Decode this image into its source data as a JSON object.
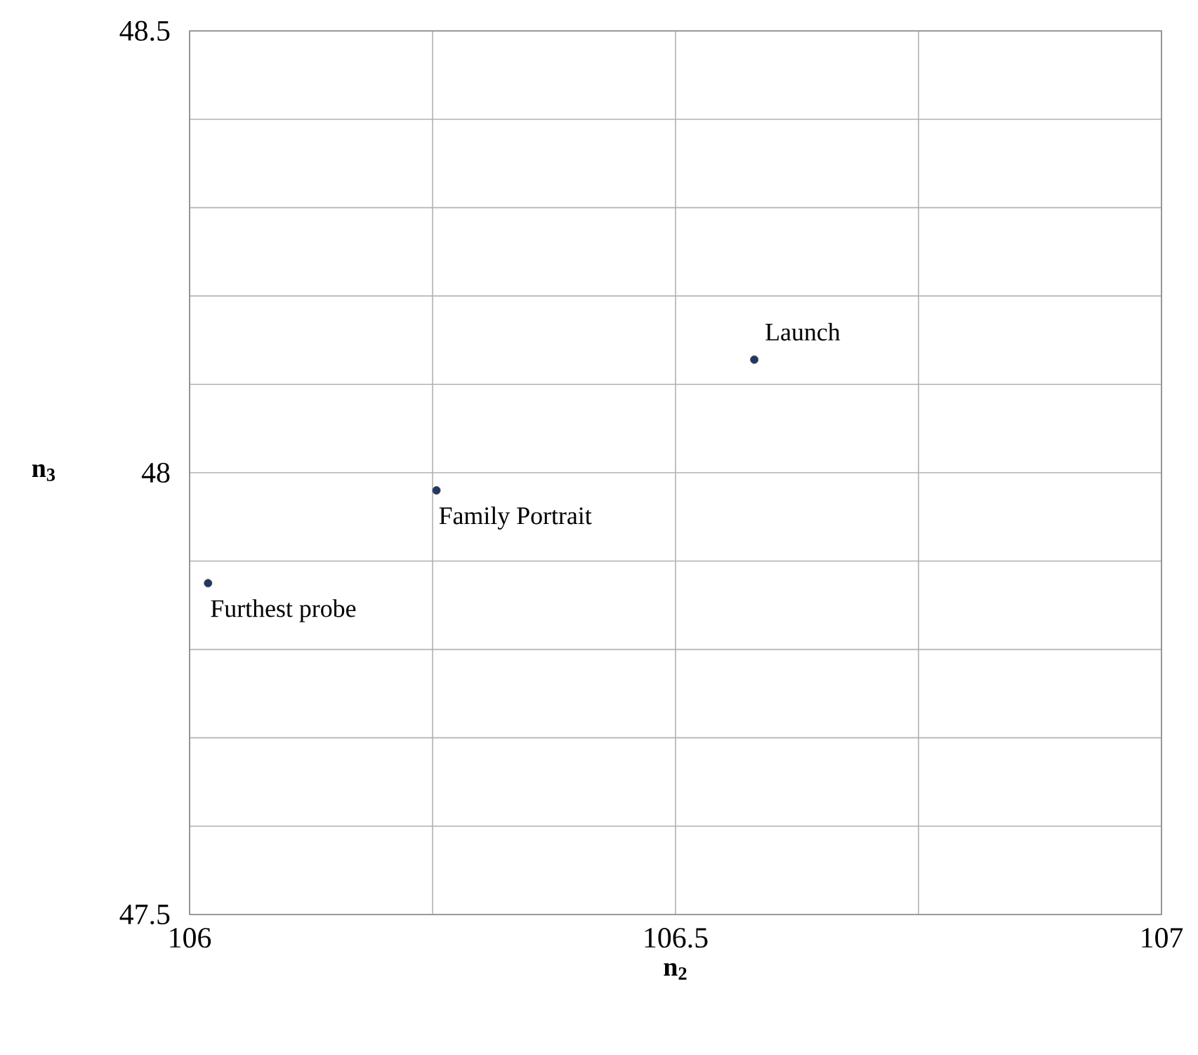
{
  "chart_data": {
    "type": "scatter",
    "xlabel": "n$_{2}$",
    "ylabel": "n$_{3}$",
    "series": [
      {
        "color": "#1f3864",
        "x": [
          106.581,
          106.254,
          106.019
        ],
        "values": [
          48.128,
          47.98,
          47.875
        ]
      }
    ],
    "xlim": [
      106,
      107
    ],
    "ylim": [
      47.5,
      48.5
    ],
    "xticks": [
      106,
      {
        "value": 106.25,
        "label": null
      },
      106.5,
      {
        "value": 106.75,
        "label": null
      },
      107
    ],
    "yticks": [
      47.5,
      {
        "value": 47.6,
        "label": null
      },
      {
        "value": 47.7,
        "label": null
      },
      {
        "value": 47.8,
        "label": null
      },
      {
        "value": 47.9,
        "label": null
      },
      48,
      {
        "value": 48.1,
        "label": null
      },
      {
        "value": 48.2,
        "label": null
      },
      {
        "value": 48.3,
        "label": null
      },
      {
        "value": 48.4,
        "label": null
      },
      48.5
    ],
    "grid": true,
    "marker": "circle",
    "annotations": [
      {
        "text": "Launch",
        "x": 106.581,
        "y": 48.128
      },
      {
        "text": "Family Portrait",
        "x": 106.254,
        "y": 47.98
      },
      {
        "text": "Furthest probe",
        "x": 106.019,
        "y": 47.875
      }
    ]
  }
}
